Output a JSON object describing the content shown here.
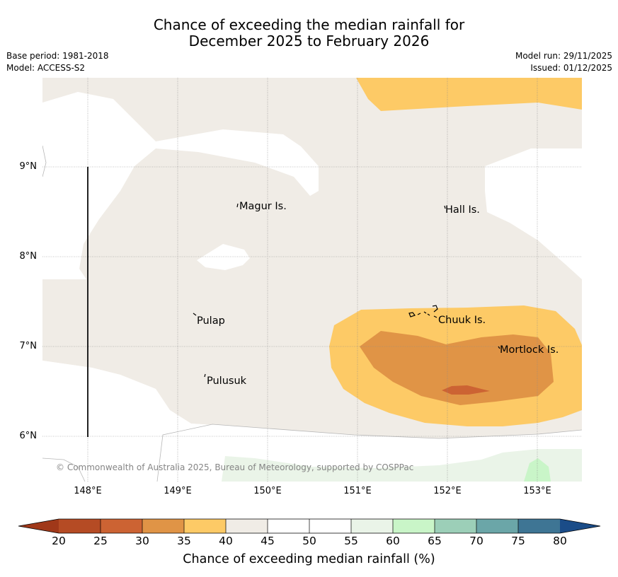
{
  "title": {
    "line1": "Chance of exceeding the median rainfall for",
    "line2": "December 2025 to February 2026"
  },
  "meta": {
    "base_period": "Base period: 1981-2018",
    "model": "Model: ACCESS-S2",
    "model_run": "Model run: 29/11/2025",
    "issued": "Issued: 01/12/2025"
  },
  "map": {
    "lat_labels": [
      "9°N",
      "8°N",
      "7°N",
      "6°N"
    ],
    "lon_labels": [
      "148°E",
      "149°E",
      "150°E",
      "151°E",
      "152°E",
      "153°E"
    ],
    "places": [
      "Magur Is.",
      "Hall Is.",
      "Pulap",
      "Chuuk Is.",
      "Mortlock Is.",
      "Pulusuk"
    ],
    "copyright": "© Commonwealth of Australia 2025, Bureau of Meteorology, supported by COSPPac",
    "colors": {
      "band_40_45": "#f0ece6",
      "band_35_40": "#fdca66",
      "band_30_35": "#e09446",
      "band_25_30": "#cc6333",
      "band_55_60": "#eaf4e8",
      "band_60_65": "#c9f5c8"
    }
  },
  "colorbar": {
    "ticks": [
      "20",
      "25",
      "30",
      "35",
      "40",
      "45",
      "50",
      "55",
      "60",
      "65",
      "70",
      "75",
      "80"
    ],
    "colors": [
      "#a03819",
      "#b54b24",
      "#cc6333",
      "#e09446",
      "#fdca66",
      "#f0ece6",
      "#ffffff",
      "#ffffff",
      "#eaf4e8",
      "#c9f5c8",
      "#9ccfb8",
      "#6ba6a8",
      "#3e7594",
      "#1a4c88"
    ],
    "title": "Chance of exceeding median rainfall (%)"
  }
}
